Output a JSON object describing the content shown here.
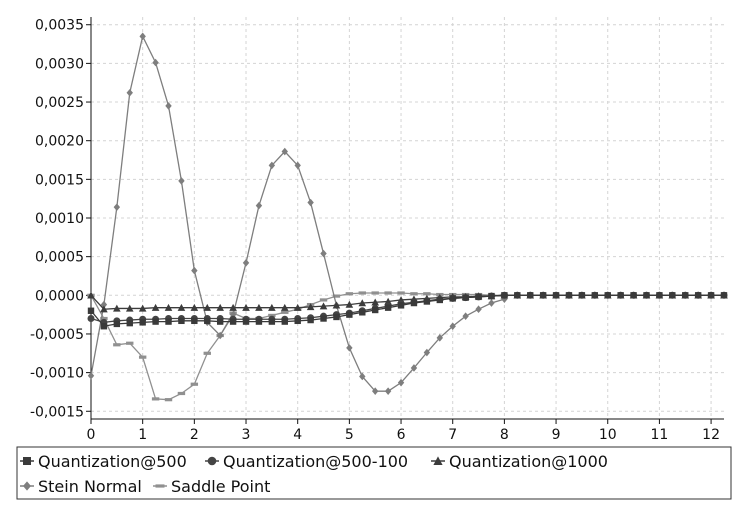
{
  "chart_data": {
    "type": "line",
    "title": "",
    "xlabel": "",
    "ylabel": "",
    "xlim": [
      0,
      12.25
    ],
    "ylim": [
      -0.0016,
      0.0036
    ],
    "x_ticks": [
      "0",
      "1",
      "2",
      "3",
      "4",
      "5",
      "6",
      "7",
      "8",
      "9",
      "10",
      "11",
      "12"
    ],
    "y_ticks": [
      "0,0035",
      "0,0030",
      "0,0025",
      "0,0020",
      "0,0015",
      "0,0010",
      "0,0005",
      "0,0000",
      "-0,0005",
      "-0,0010",
      "-0,0015"
    ],
    "grid": true,
    "legend_position": "bottom",
    "series": [
      {
        "name": "Quantization@500",
        "marker": "square",
        "color": "#3a3a3a",
        "x": [
          0,
          0.25,
          0.5,
          0.75,
          1,
          1.25,
          1.5,
          1.75,
          2,
          2.25,
          2.5,
          2.75,
          3,
          3.25,
          3.5,
          3.75,
          4,
          4.25,
          4.5,
          4.75,
          5,
          5.25,
          5.5,
          5.75,
          6,
          6.25,
          6.5,
          6.75,
          7,
          7.25,
          7.5,
          7.75,
          8,
          8.25,
          8.5,
          8.75,
          9,
          9.25,
          9.5,
          9.75,
          10,
          10.25,
          10.5,
          10.75,
          11,
          11.25,
          11.5,
          11.75,
          12,
          12.25
        ],
        "y": [
          -0.0002,
          -0.0004,
          -0.00037,
          -0.00036,
          -0.00035,
          -0.00034,
          -0.00034,
          -0.00033,
          -0.00033,
          -0.00033,
          -0.00034,
          -0.00034,
          -0.00034,
          -0.00034,
          -0.00034,
          -0.00034,
          -0.00033,
          -0.00032,
          -0.0003,
          -0.00028,
          -0.00025,
          -0.00022,
          -0.00019,
          -0.00016,
          -0.00013,
          -0.0001,
          -8e-05,
          -6e-05,
          -4e-05,
          -3e-05,
          -2e-05,
          -1e-05,
          0,
          0,
          0,
          0,
          0,
          0,
          0,
          0,
          0,
          0,
          0,
          0,
          0,
          0,
          0,
          0,
          0,
          0
        ]
      },
      {
        "name": "Quantization@500-100",
        "marker": "circle",
        "color": "#444444",
        "x": [
          0,
          0.25,
          0.5,
          0.75,
          1,
          1.25,
          1.5,
          1.75,
          2,
          2.25,
          2.5,
          2.75,
          3,
          3.25,
          3.5,
          3.75,
          4,
          4.25,
          4.5,
          4.75,
          5,
          5.25,
          5.5,
          5.75,
          6,
          6.25,
          6.5,
          6.75,
          7,
          7.25,
          7.5,
          7.75,
          8,
          8.25,
          8.5,
          8.75,
          9,
          9.25,
          9.5,
          9.75,
          10,
          10.25,
          10.5,
          10.75,
          11,
          11.25,
          11.5,
          11.75,
          12,
          12.25
        ],
        "y": [
          -0.0003,
          -0.00035,
          -0.00033,
          -0.00032,
          -0.00031,
          -0.00031,
          -0.0003,
          -0.0003,
          -0.0003,
          -0.0003,
          -0.0003,
          -0.00031,
          -0.00031,
          -0.00031,
          -0.00031,
          -0.00031,
          -0.0003,
          -0.00029,
          -0.00027,
          -0.00025,
          -0.00023,
          -0.0002,
          -0.00017,
          -0.00014,
          -0.00011,
          -9e-05,
          -7e-05,
          -5e-05,
          -4e-05,
          -3e-05,
          -2e-05,
          -1e-05,
          0,
          0,
          0,
          0,
          0,
          0,
          0,
          0,
          0,
          0,
          0,
          0,
          0,
          0,
          0,
          0,
          0,
          0
        ]
      },
      {
        "name": "Quantization@1000",
        "marker": "triangle",
        "color": "#3c3c3c",
        "x": [
          0,
          0.25,
          0.5,
          0.75,
          1,
          1.25,
          1.5,
          1.75,
          2,
          2.25,
          2.5,
          2.75,
          3,
          3.25,
          3.5,
          3.75,
          4,
          4.25,
          4.5,
          4.75,
          5,
          5.25,
          5.5,
          5.75,
          6,
          6.25,
          6.5,
          6.75,
          7,
          7.25,
          7.5,
          7.75,
          8,
          8.25,
          8.5,
          8.75,
          9,
          9.25,
          9.5,
          9.75,
          10,
          10.25,
          10.5,
          10.75,
          11,
          11.25,
          11.5,
          11.75,
          12,
          12.25
        ],
        "y": [
          0,
          -0.00018,
          -0.00017,
          -0.00017,
          -0.00017,
          -0.00016,
          -0.00016,
          -0.00016,
          -0.00016,
          -0.00016,
          -0.00016,
          -0.00016,
          -0.00016,
          -0.00016,
          -0.00016,
          -0.00016,
          -0.00016,
          -0.00015,
          -0.00014,
          -0.00013,
          -0.00012,
          -0.0001,
          -9e-05,
          -8e-05,
          -6e-05,
          -5e-05,
          -4e-05,
          -3e-05,
          -2e-05,
          -2e-05,
          -1e-05,
          -1e-05,
          0,
          0,
          0,
          0,
          0,
          0,
          0,
          0,
          0,
          0,
          0,
          0,
          0,
          0,
          0,
          0,
          0,
          0
        ]
      },
      {
        "name": "Stein Normal",
        "marker": "diamond",
        "color": "#7e7e7e",
        "x": [
          0,
          0.25,
          0.5,
          0.75,
          1,
          1.25,
          1.5,
          1.75,
          2,
          2.25,
          2.5,
          2.75,
          3,
          3.25,
          3.5,
          3.75,
          4,
          4.25,
          4.5,
          4.75,
          5,
          5.25,
          5.5,
          5.75,
          6,
          6.25,
          6.5,
          6.75,
          7,
          7.25,
          7.5,
          7.75,
          8
        ],
        "y": [
          -0.00104,
          -0.00012,
          0.00114,
          0.00262,
          0.00335,
          0.00301,
          0.00245,
          0.00148,
          0.00032,
          -0.00035,
          -0.00052,
          -0.00025,
          0.00042,
          0.00116,
          0.00168,
          0.00186,
          0.00168,
          0.0012,
          0.00054,
          -0.00013,
          -0.00068,
          -0.00105,
          -0.00124,
          -0.00124,
          -0.00113,
          -0.00094,
          -0.00074,
          -0.00055,
          -0.0004,
          -0.00027,
          -0.00018,
          -0.0001,
          -5e-05
        ]
      },
      {
        "name": "Saddle Point",
        "marker": "dash",
        "color": "#909090",
        "x": [
          0,
          0.25,
          0.5,
          0.75,
          1,
          1.25,
          1.5,
          1.75,
          2,
          2.25,
          2.5,
          2.75,
          3,
          3.25,
          3.5,
          3.75,
          4,
          4.25,
          4.5,
          4.75,
          5,
          5.25,
          5.5,
          5.75,
          6,
          6.25,
          6.5,
          6.75,
          7,
          7.25,
          7.5,
          7.75,
          8
        ],
        "y": [
          0,
          -0.0003,
          -0.00064,
          -0.00062,
          -0.0008,
          -0.00134,
          -0.00135,
          -0.00127,
          -0.00115,
          -0.00075,
          -0.00052,
          -0.00023,
          -0.0003,
          -0.0003,
          -0.00026,
          -0.00022,
          -0.00018,
          -0.00012,
          -6e-05,
          -1e-05,
          2e-05,
          3e-05,
          3e-05,
          3e-05,
          3e-05,
          2e-05,
          2e-05,
          1e-05,
          1e-05,
          1e-05,
          1e-05,
          0,
          0
        ]
      }
    ]
  }
}
